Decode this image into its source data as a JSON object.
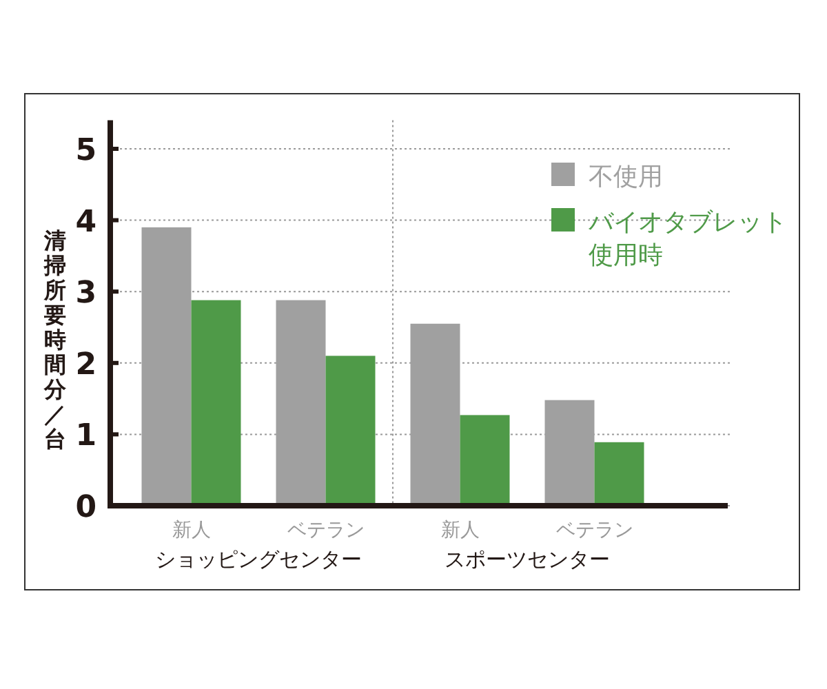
{
  "chart_data": {
    "type": "bar",
    "ylabel": "清掃所要時間分／台",
    "categories": [
      "新人",
      "ベテラン",
      "新人",
      "ベテラン"
    ],
    "series": [
      {
        "name": "不使用",
        "color": "#a0a0a0",
        "values": [
          3.9,
          2.88,
          2.55,
          1.48
        ]
      },
      {
        "name": "バイオタブレット使用時",
        "color": "#4f9a48",
        "values": [
          2.88,
          2.1,
          1.27,
          0.89
        ]
      }
    ],
    "ylim": [
      0,
      5.4
    ],
    "yticks": [
      0,
      1,
      2,
      3,
      4,
      5
    ],
    "grid": "y",
    "legend": "top right",
    "annotations": [
      "ショッピングセンター",
      "スポーツセンター"
    ]
  }
}
